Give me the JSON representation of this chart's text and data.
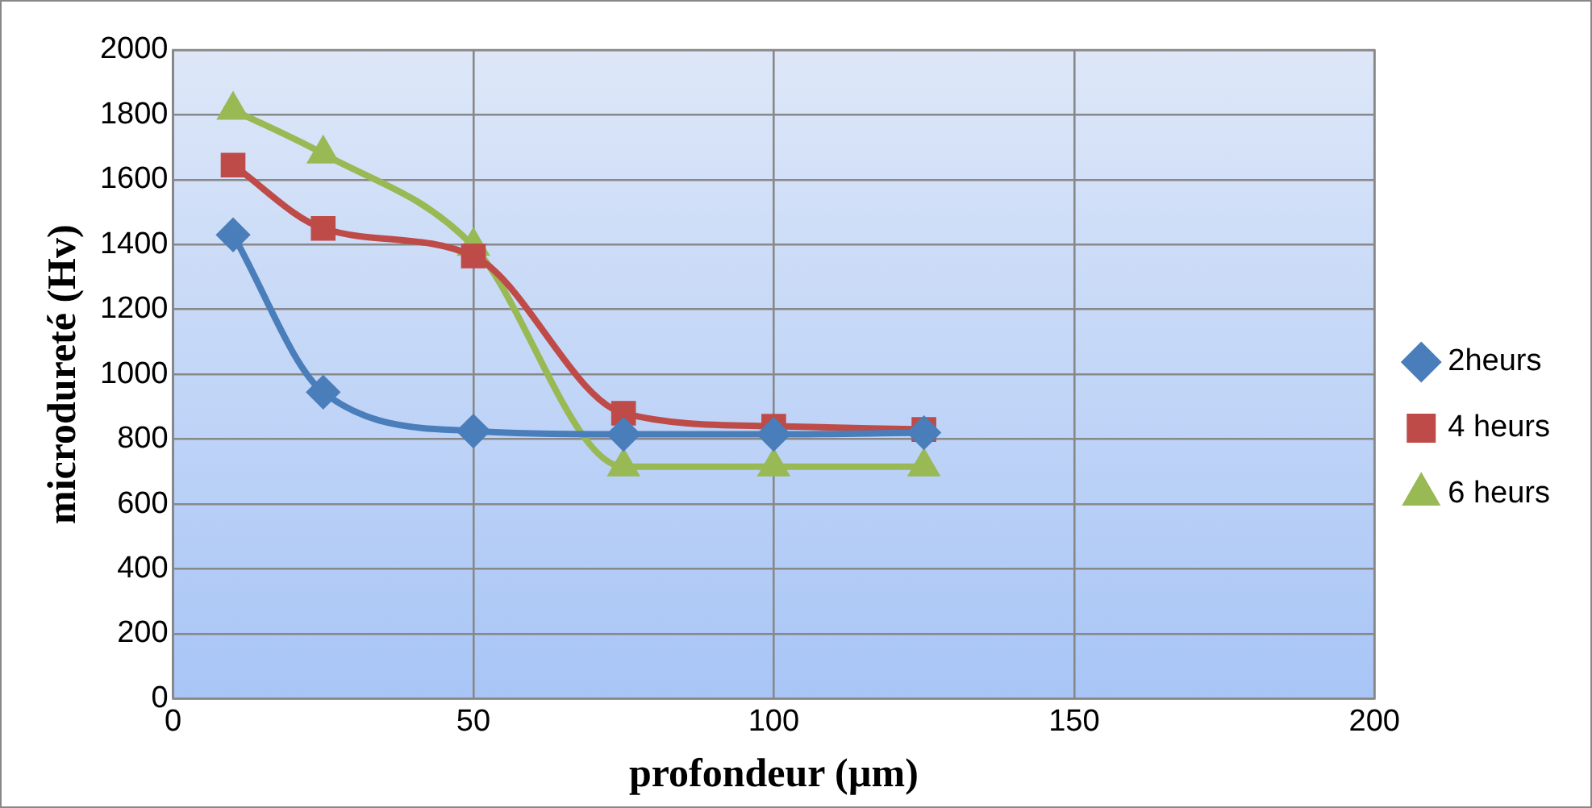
{
  "chart_data": {
    "type": "line",
    "xlabel": "profondeur (µm)",
    "ylabel": "microdureté (Hv)",
    "x": [
      10,
      25,
      50,
      75,
      100,
      125
    ],
    "series": [
      {
        "name": "2heurs",
        "color": "#4a7ebb",
        "marker": "diamond",
        "values": [
          1430,
          945,
          825,
          815,
          815,
          820
        ]
      },
      {
        "name": "4 heurs",
        "color": "#be4b48",
        "marker": "square",
        "values": [
          1645,
          1450,
          1365,
          880,
          840,
          830
        ]
      },
      {
        "name": "6 heurs",
        "color": "#98b954",
        "marker": "triangle",
        "values": [
          1815,
          1680,
          1395,
          715,
          715,
          715
        ]
      }
    ],
    "xlim": [
      0,
      200
    ],
    "xticks": [
      0,
      50,
      100,
      150,
      200
    ],
    "ylim": [
      0,
      2000
    ],
    "yticks": [
      0,
      200,
      400,
      600,
      800,
      1000,
      1200,
      1400,
      1600,
      1800,
      2000
    ],
    "grid": true,
    "legend": "right",
    "line_style": "solid"
  }
}
